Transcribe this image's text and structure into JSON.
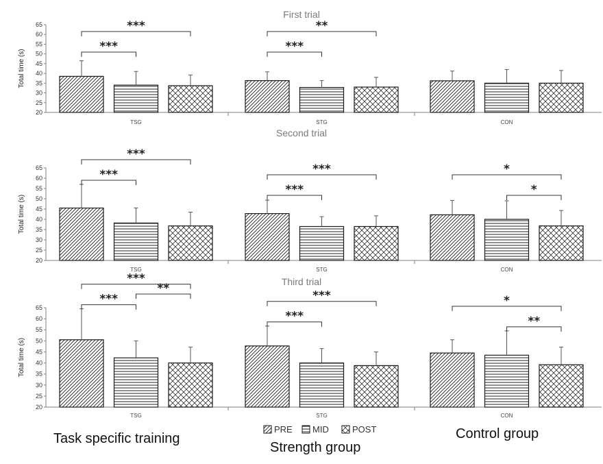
{
  "chart_data": [
    {
      "type": "bar",
      "title": "First trial",
      "ylabel": "Total time (s)",
      "ylim": [
        20,
        65
      ],
      "yticks": [
        20,
        25,
        30,
        35,
        40,
        45,
        50,
        55,
        60,
        65
      ],
      "groups": [
        "TSG",
        "STG",
        "CON"
      ],
      "series": [
        {
          "name": "PRE",
          "values": [
            38.5,
            36.3,
            36.2
          ],
          "errors": [
            8.0,
            4.5,
            5.0
          ]
        },
        {
          "name": "MID",
          "values": [
            34.0,
            32.8,
            35.0
          ],
          "errors": [
            7.0,
            3.5,
            7.0
          ]
        },
        {
          "name": "POST",
          "values": [
            33.7,
            33.0,
            35.0
          ],
          "errors": [
            5.5,
            5.0,
            6.5
          ]
        }
      ],
      "significance": [
        {
          "group": "TSG",
          "from": "PRE",
          "to": "MID",
          "label": "***"
        },
        {
          "group": "TSG",
          "from": "PRE",
          "to": "POST",
          "label": "***"
        },
        {
          "group": "STG",
          "from": "PRE",
          "to": "MID",
          "label": "***"
        },
        {
          "group": "STG",
          "from": "PRE",
          "to": "POST",
          "label": "**"
        }
      ]
    },
    {
      "type": "bar",
      "title": "Second trial",
      "ylabel": "Total time (s)",
      "ylim": [
        20,
        65
      ],
      "yticks": [
        20,
        25,
        30,
        35,
        40,
        45,
        50,
        55,
        60,
        65
      ],
      "groups": [
        "TSG",
        "STG",
        "CON"
      ],
      "series": [
        {
          "name": "PRE",
          "values": [
            45.5,
            42.8,
            42.2
          ],
          "errors": [
            11.5,
            6.5,
            7.0
          ]
        },
        {
          "name": "MID",
          "values": [
            38.2,
            36.5,
            40.0
          ],
          "errors": [
            7.3,
            4.8,
            9.0
          ]
        },
        {
          "name": "POST",
          "values": [
            36.8,
            36.5,
            36.8
          ],
          "errors": [
            6.7,
            5.2,
            7.5
          ]
        }
      ],
      "significance": [
        {
          "group": "TSG",
          "from": "PRE",
          "to": "MID",
          "label": "***"
        },
        {
          "group": "TSG",
          "from": "PRE",
          "to": "POST",
          "label": "***"
        },
        {
          "group": "STG",
          "from": "PRE",
          "to": "MID",
          "label": "***"
        },
        {
          "group": "STG",
          "from": "PRE",
          "to": "POST",
          "label": "***"
        },
        {
          "group": "CON",
          "from": "MID",
          "to": "POST",
          "label": "*"
        },
        {
          "group": "CON",
          "from": "PRE",
          "to": "POST",
          "label": "*"
        }
      ]
    },
    {
      "type": "bar",
      "title": "Third trial",
      "ylabel": "Total time (s)",
      "ylim": [
        20,
        65
      ],
      "yticks": [
        20,
        25,
        30,
        35,
        40,
        45,
        50,
        55,
        60,
        65
      ],
      "groups": [
        "TSG",
        "STG",
        "CON"
      ],
      "series": [
        {
          "name": "PRE",
          "values": [
            50.5,
            47.7,
            44.5
          ],
          "errors": [
            14.0,
            9.0,
            6.0
          ]
        },
        {
          "name": "MID",
          "values": [
            42.3,
            40.0,
            43.5
          ],
          "errors": [
            7.7,
            6.5,
            11.0
          ]
        },
        {
          "name": "POST",
          "values": [
            40.0,
            38.8,
            39.2
          ],
          "errors": [
            7.2,
            6.2,
            8.0
          ]
        }
      ],
      "significance": [
        {
          "group": "TSG",
          "from": "PRE",
          "to": "MID",
          "label": "***"
        },
        {
          "group": "TSG",
          "from": "PRE",
          "to": "POST",
          "label": "***"
        },
        {
          "group": "TSG",
          "from": "MID",
          "to": "POST",
          "label": "**"
        },
        {
          "group": "STG",
          "from": "PRE",
          "to": "MID",
          "label": "***"
        },
        {
          "group": "STG",
          "from": "PRE",
          "to": "POST",
          "label": "***"
        },
        {
          "group": "CON",
          "from": "MID",
          "to": "POST",
          "label": "**"
        },
        {
          "group": "CON",
          "from": "PRE",
          "to": "POST",
          "label": "*"
        }
      ]
    }
  ],
  "legend": {
    "items": [
      {
        "name": "PRE",
        "pattern": "diagonal"
      },
      {
        "name": "MID",
        "pattern": "horizontal"
      },
      {
        "name": "POST",
        "pattern": "crosshatch"
      }
    ]
  },
  "captions": {
    "tsg": "Task specific training",
    "stg": "Strength group",
    "con": "Control group"
  },
  "colors": {
    "bar_stroke": "#1a1a1a",
    "axis": "#7f7f7f",
    "title": "#7a7a7a",
    "text": "#111111"
  }
}
